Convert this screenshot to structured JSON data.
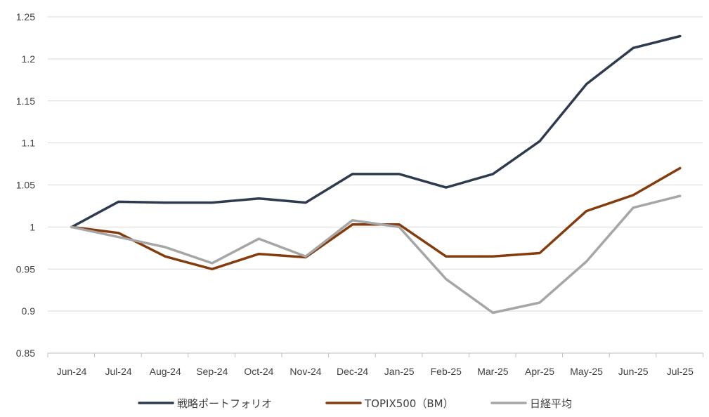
{
  "chart_data": {
    "type": "line",
    "title": "",
    "xlabel": "",
    "ylabel": "",
    "categories": [
      "Jun-24",
      "Jul-24",
      "Aug-24",
      "Sep-24",
      "Oct-24",
      "Nov-24",
      "Dec-24",
      "Jan-25",
      "Feb-25",
      "Mar-25",
      "Apr-25",
      "May-25",
      "Jun-25",
      "Jul-25"
    ],
    "ylim": [
      0.85,
      1.25
    ],
    "yticks": [
      "0.85",
      "0.9",
      "0.95",
      "1",
      "1.05",
      "1.1",
      "1.15",
      "1.2",
      "1.25"
    ],
    "grid": true,
    "legend_position": "bottom",
    "series": [
      {
        "name": "戦略ポートフォリオ",
        "color": "#2e3b4e",
        "values": [
          1.0,
          1.03,
          1.029,
          1.029,
          1.034,
          1.029,
          1.063,
          1.063,
          1.047,
          1.063,
          1.102,
          1.17,
          1.213,
          1.227
        ]
      },
      {
        "name": "TOPIX500（BM）",
        "color": "#843c0c",
        "values": [
          1.0,
          0.993,
          0.965,
          0.95,
          0.968,
          0.964,
          1.003,
          1.003,
          0.965,
          0.965,
          0.969,
          1.019,
          1.038,
          1.07
        ]
      },
      {
        "name": "日経平均",
        "color": "#a6a6a6",
        "values": [
          1.0,
          0.988,
          0.976,
          0.957,
          0.986,
          0.965,
          1.008,
          1.0,
          0.938,
          0.898,
          0.91,
          0.959,
          1.023,
          1.037
        ]
      }
    ]
  }
}
